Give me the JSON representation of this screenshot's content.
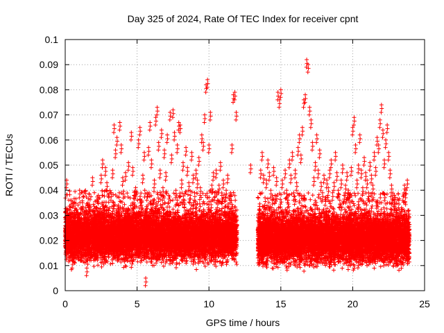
{
  "chart_data": {
    "type": "scatter",
    "title": "Day 325 of 2024, Rate Of TEC Index for receiver cpnt",
    "xlabel": "GPS time / hours",
    "ylabel": "ROTI / TECUs",
    "xlim": [
      0,
      25
    ],
    "ylim": [
      0,
      0.1
    ],
    "x_ticks": [
      0,
      5,
      10,
      15,
      20,
      25
    ],
    "y_ticks": [
      0,
      0.01,
      0.02,
      0.03,
      0.04,
      0.05,
      0.06,
      0.07,
      0.08,
      0.09,
      0.1
    ],
    "x_tick_labels": [
      "0",
      "5",
      "10",
      "15",
      "20",
      "25"
    ],
    "y_tick_labels": [
      "0",
      "0.01",
      "0.02",
      "0.03",
      "0.04",
      "0.05",
      "0.06",
      "0.07",
      "0.08",
      "0.09",
      "0.1"
    ],
    "grid": true,
    "marker": "+",
    "color": "#ff0000",
    "points": [
      [
        0.05,
        0.021
      ],
      [
        0.1,
        0.044
      ],
      [
        0.15,
        0.029
      ],
      [
        0.2,
        0.018
      ],
      [
        0.3,
        0.032
      ],
      [
        0.4,
        0.036
      ],
      [
        0.5,
        0.012
      ],
      [
        0.6,
        0.025
      ],
      [
        0.7,
        0.028
      ],
      [
        0.8,
        0.022
      ],
      [
        0.9,
        0.031
      ],
      [
        1.0,
        0.04
      ],
      [
        1.1,
        0.016
      ],
      [
        1.2,
        0.035
      ],
      [
        1.3,
        0.019
      ],
      [
        1.4,
        0.024
      ],
      [
        1.5,
        0.009
      ],
      [
        1.6,
        0.027
      ],
      [
        1.7,
        0.022
      ],
      [
        1.8,
        0.03
      ],
      [
        1.9,
        0.045
      ],
      [
        2.0,
        0.026
      ],
      [
        2.1,
        0.018
      ],
      [
        2.2,
        0.033
      ],
      [
        2.3,
        0.038
      ],
      [
        2.4,
        0.021
      ],
      [
        2.5,
        0.046
      ],
      [
        2.6,
        0.052
      ],
      [
        2.7,
        0.029
      ],
      [
        2.8,
        0.049
      ],
      [
        2.9,
        0.043
      ],
      [
        3.0,
        0.031
      ],
      [
        3.1,
        0.025
      ],
      [
        3.2,
        0.039
      ],
      [
        3.3,
        0.048
      ],
      [
        3.4,
        0.066
      ],
      [
        3.5,
        0.056
      ],
      [
        3.6,
        0.061
      ],
      [
        3.7,
        0.034
      ],
      [
        3.8,
        0.067
      ],
      [
        3.9,
        0.058
      ],
      [
        4.0,
        0.045
      ],
      [
        4.1,
        0.027
      ],
      [
        4.2,
        0.047
      ],
      [
        4.3,
        0.021
      ],
      [
        4.4,
        0.051
      ],
      [
        4.5,
        0.029
      ],
      [
        4.6,
        0.063
      ],
      [
        4.7,
        0.049
      ],
      [
        4.8,
        0.038
      ],
      [
        4.9,
        0.041
      ],
      [
        5.0,
        0.028
      ],
      [
        5.1,
        0.06
      ],
      [
        5.2,
        0.065
      ],
      [
        5.3,
        0.034
      ],
      [
        5.4,
        0.046
      ],
      [
        5.5,
        0.055
      ],
      [
        5.6,
        0.005
      ],
      [
        5.7,
        0.039
      ],
      [
        5.8,
        0.057
      ],
      [
        5.9,
        0.067
      ],
      [
        6.0,
        0.052
      ],
      [
        6.1,
        0.036
      ],
      [
        6.2,
        0.044
      ],
      [
        6.3,
        0.069
      ],
      [
        6.4,
        0.073
      ],
      [
        6.5,
        0.059
      ],
      [
        6.6,
        0.048
      ],
      [
        6.7,
        0.064
      ],
      [
        6.8,
        0.041
      ],
      [
        6.9,
        0.056
      ],
      [
        7.0,
        0.047
      ],
      [
        7.1,
        0.062
      ],
      [
        7.2,
        0.038
      ],
      [
        7.3,
        0.071
      ],
      [
        7.4,
        0.054
      ],
      [
        7.5,
        0.072
      ],
      [
        7.6,
        0.063
      ],
      [
        7.7,
        0.04
      ],
      [
        7.8,
        0.058
      ],
      [
        7.9,
        0.067
      ],
      [
        8.0,
        0.066
      ],
      [
        8.1,
        0.044
      ],
      [
        8.2,
        0.051
      ],
      [
        8.3,
        0.036
      ],
      [
        8.4,
        0.057
      ],
      [
        8.5,
        0.049
      ],
      [
        8.6,
        0.043
      ],
      [
        8.7,
        0.038
      ],
      [
        8.8,
        0.055
      ],
      [
        8.9,
        0.046
      ],
      [
        9.0,
        0.039
      ],
      [
        9.1,
        0.048
      ],
      [
        9.2,
        0.044
      ],
      [
        9.3,
        0.053
      ],
      [
        9.4,
        0.041
      ],
      [
        9.5,
        0.062
      ],
      [
        9.6,
        0.059
      ],
      [
        9.7,
        0.07
      ],
      [
        9.8,
        0.082
      ],
      [
        9.9,
        0.084
      ],
      [
        10.0,
        0.058
      ],
      [
        10.1,
        0.071
      ],
      [
        10.2,
        0.042
      ],
      [
        10.3,
        0.047
      ],
      [
        10.4,
        0.039
      ],
      [
        10.5,
        0.048
      ],
      [
        10.6,
        0.036
      ],
      [
        10.7,
        0.042
      ],
      [
        10.8,
        0.051
      ],
      [
        10.9,
        0.038
      ],
      [
        11.0,
        0.044
      ],
      [
        11.1,
        0.033
      ],
      [
        11.2,
        0.04
      ],
      [
        11.3,
        0.046
      ],
      [
        11.4,
        0.031
      ],
      [
        11.5,
        0.039
      ],
      [
        11.6,
        0.058
      ],
      [
        11.7,
        0.078
      ],
      [
        11.8,
        0.079
      ],
      [
        11.9,
        0.071
      ],
      [
        12.9,
        0.05
      ],
      [
        13.5,
        0.029
      ],
      [
        13.6,
        0.048
      ],
      [
        13.7,
        0.055
      ],
      [
        13.8,
        0.046
      ],
      [
        13.9,
        0.037
      ],
      [
        14.0,
        0.044
      ],
      [
        14.1,
        0.052
      ],
      [
        14.2,
        0.047
      ],
      [
        14.3,
        0.04
      ],
      [
        14.4,
        0.036
      ],
      [
        14.5,
        0.049
      ],
      [
        14.6,
        0.038
      ],
      [
        14.7,
        0.045
      ],
      [
        14.8,
        0.079
      ],
      [
        14.9,
        0.076
      ],
      [
        15.0,
        0.08
      ],
      [
        15.1,
        0.044
      ],
      [
        15.2,
        0.031
      ],
      [
        15.3,
        0.048
      ],
      [
        15.4,
        0.04
      ],
      [
        15.5,
        0.036
      ],
      [
        15.6,
        0.052
      ],
      [
        15.7,
        0.046
      ],
      [
        15.8,
        0.055
      ],
      [
        15.9,
        0.039
      ],
      [
        16.0,
        0.048
      ],
      [
        16.1,
        0.043
      ],
      [
        16.2,
        0.057
      ],
      [
        16.3,
        0.062
      ],
      [
        16.4,
        0.054
      ],
      [
        16.5,
        0.065
      ],
      [
        16.6,
        0.076
      ],
      [
        16.7,
        0.078
      ],
      [
        16.8,
        0.092
      ],
      [
        16.9,
        0.09
      ],
      [
        17.0,
        0.073
      ],
      [
        17.1,
        0.068
      ],
      [
        17.2,
        0.059
      ],
      [
        17.3,
        0.045
      ],
      [
        17.4,
        0.051
      ],
      [
        17.5,
        0.062
      ],
      [
        17.6,
        0.048
      ],
      [
        17.7,
        0.056
      ],
      [
        17.8,
        0.043
      ],
      [
        17.9,
        0.039
      ],
      [
        18.0,
        0.046
      ],
      [
        18.1,
        0.037
      ],
      [
        18.2,
        0.044
      ],
      [
        18.3,
        0.041
      ],
      [
        18.4,
        0.048
      ],
      [
        18.5,
        0.052
      ],
      [
        18.6,
        0.039
      ],
      [
        18.7,
        0.043
      ],
      [
        18.8,
        0.055
      ],
      [
        18.9,
        0.047
      ],
      [
        19.0,
        0.04
      ],
      [
        19.1,
        0.036
      ],
      [
        19.2,
        0.044
      ],
      [
        19.3,
        0.05
      ],
      [
        19.4,
        0.038
      ],
      [
        19.5,
        0.042
      ],
      [
        19.6,
        0.047
      ],
      [
        19.7,
        0.04
      ],
      [
        19.8,
        0.035
      ],
      [
        19.9,
        0.049
      ],
      [
        20.0,
        0.065
      ],
      [
        20.1,
        0.069
      ],
      [
        20.2,
        0.058
      ],
      [
        20.3,
        0.044
      ],
      [
        20.4,
        0.05
      ],
      [
        20.5,
        0.062
      ],
      [
        20.6,
        0.048
      ],
      [
        20.7,
        0.041
      ],
      [
        20.8,
        0.053
      ],
      [
        20.9,
        0.047
      ],
      [
        21.0,
        0.044
      ],
      [
        21.1,
        0.039
      ],
      [
        21.2,
        0.051
      ],
      [
        21.3,
        0.046
      ],
      [
        21.4,
        0.042
      ],
      [
        21.5,
        0.055
      ],
      [
        21.6,
        0.049
      ],
      [
        21.7,
        0.061
      ],
      [
        21.8,
        0.058
      ],
      [
        21.9,
        0.068
      ],
      [
        22.0,
        0.074
      ],
      [
        22.1,
        0.064
      ],
      [
        22.2,
        0.052
      ],
      [
        22.3,
        0.06
      ],
      [
        22.4,
        0.066
      ],
      [
        22.5,
        0.055
      ],
      [
        22.6,
        0.048
      ],
      [
        22.7,
        0.042
      ],
      [
        22.8,
        0.038
      ],
      [
        22.9,
        0.035
      ],
      [
        23.0,
        0.031
      ],
      [
        23.1,
        0.029
      ],
      [
        23.2,
        0.036
      ],
      [
        23.3,
        0.027
      ],
      [
        23.4,
        0.033
      ],
      [
        23.5,
        0.03
      ],
      [
        23.6,
        0.042
      ],
      [
        23.7,
        0.04
      ],
      [
        23.8,
        0.044
      ],
      [
        23.9,
        0.032
      ]
    ],
    "bands": [
      {
        "from": 0.0,
        "to": 11.95,
        "lower": 0.008,
        "upper": 0.035,
        "center": 0.02,
        "count": 9000
      },
      {
        "from": 13.4,
        "to": 23.95,
        "lower": 0.007,
        "upper": 0.034,
        "center": 0.019,
        "count": 8500
      }
    ]
  }
}
